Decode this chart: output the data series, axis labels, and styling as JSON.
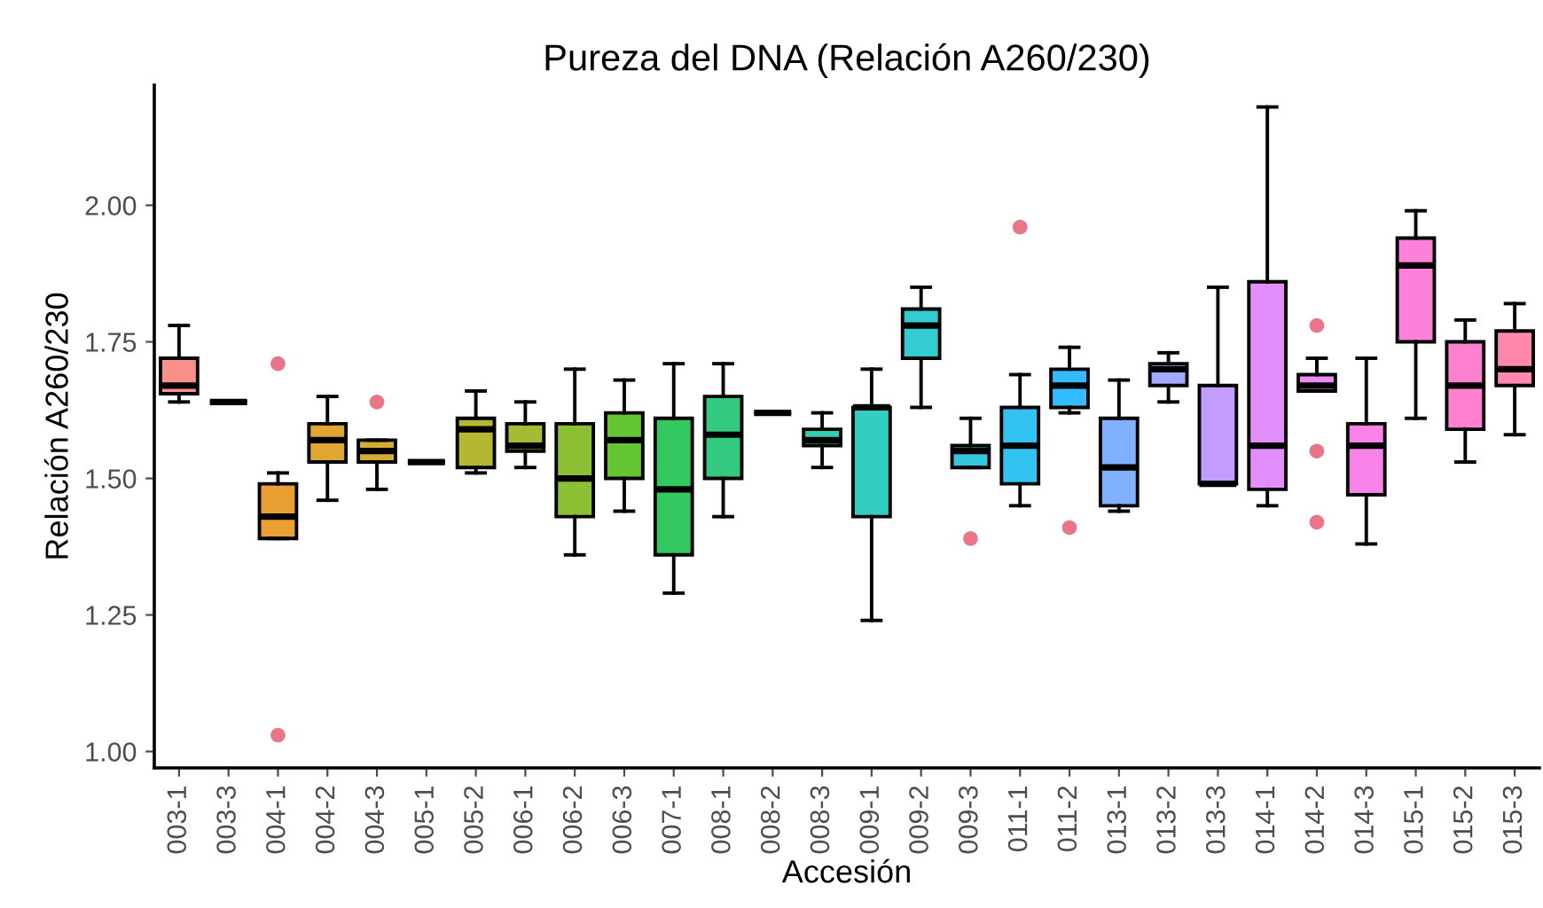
{
  "chart_data": {
    "type": "box",
    "title": "Pureza del DNA (Relación A260/230)",
    "xlabel": "Accesión",
    "ylabel": "Relación A260/230",
    "categories": [
      "003-1",
      "003-3",
      "004-1",
      "004-2",
      "004-3",
      "005-1",
      "005-2",
      "006-1",
      "006-2",
      "006-3",
      "007-1",
      "008-1",
      "008-2",
      "008-3",
      "009-1",
      "009-2",
      "009-3",
      "011-1",
      "011-2",
      "013-1",
      "013-2",
      "013-3",
      "014-1",
      "014-2",
      "014-3",
      "015-1",
      "015-2",
      "015-3"
    ],
    "colors": [
      "#F8766D",
      null,
      "#E58700",
      "#D89000",
      "#C99800",
      null,
      "#A3A500",
      "#8CAB00",
      "#6FB000",
      "#3DB600",
      "#00BA38",
      "#00BD5F",
      null,
      "#00C19A",
      "#00C1B2",
      "#00BFC4",
      "#00BAD6",
      "#00B4EF",
      "#00A9FF",
      "#619CFF",
      "#8B93FF",
      "#B385FF",
      "#DB72FB",
      "#E76BF3",
      "#F564E3",
      "#FA62D0",
      "#FF61C3",
      "#FF6A98"
    ],
    "boxes": [
      {
        "low": 1.64,
        "q1": 1.655,
        "median": 1.67,
        "q3": 1.72,
        "high": 1.78
      },
      {
        "low": 1.64,
        "q1": 1.64,
        "median": 1.64,
        "q3": 1.64,
        "high": 1.64
      },
      {
        "low": 1.39,
        "q1": 1.39,
        "median": 1.43,
        "q3": 1.49,
        "high": 1.51,
        "outliers": [
          1.71,
          1.03
        ]
      },
      {
        "low": 1.46,
        "q1": 1.53,
        "median": 1.57,
        "q3": 1.6,
        "high": 1.65
      },
      {
        "low": 1.48,
        "q1": 1.53,
        "median": 1.55,
        "q3": 1.57,
        "high": 1.57,
        "outliers": [
          1.64
        ]
      },
      {
        "low": 1.53,
        "q1": 1.53,
        "median": 1.53,
        "q3": 1.53,
        "high": 1.53
      },
      {
        "low": 1.51,
        "q1": 1.52,
        "median": 1.59,
        "q3": 1.61,
        "high": 1.66
      },
      {
        "low": 1.52,
        "q1": 1.55,
        "median": 1.56,
        "q3": 1.6,
        "high": 1.64
      },
      {
        "low": 1.36,
        "q1": 1.43,
        "median": 1.5,
        "q3": 1.6,
        "high": 1.7
      },
      {
        "low": 1.44,
        "q1": 1.5,
        "median": 1.57,
        "q3": 1.62,
        "high": 1.68
      },
      {
        "low": 1.29,
        "q1": 1.36,
        "median": 1.48,
        "q3": 1.61,
        "high": 1.71
      },
      {
        "low": 1.43,
        "q1": 1.5,
        "median": 1.58,
        "q3": 1.65,
        "high": 1.71
      },
      {
        "low": 1.62,
        "q1": 1.62,
        "median": 1.62,
        "q3": 1.62,
        "high": 1.62
      },
      {
        "low": 1.52,
        "q1": 1.56,
        "median": 1.57,
        "q3": 1.59,
        "high": 1.62
      },
      {
        "low": 1.24,
        "q1": 1.43,
        "median": 1.63,
        "q3": 1.63,
        "high": 1.7
      },
      {
        "low": 1.63,
        "q1": 1.72,
        "median": 1.78,
        "q3": 1.81,
        "high": 1.85
      },
      {
        "low": 1.52,
        "q1": 1.52,
        "median": 1.55,
        "q3": 1.56,
        "high": 1.61,
        "outliers": [
          1.39
        ]
      },
      {
        "low": 1.45,
        "q1": 1.49,
        "median": 1.56,
        "q3": 1.63,
        "high": 1.69,
        "outliers": [
          1.96
        ]
      },
      {
        "low": 1.62,
        "q1": 1.63,
        "median": 1.67,
        "q3": 1.7,
        "high": 1.74,
        "outliers": [
          1.41
        ]
      },
      {
        "low": 1.44,
        "q1": 1.45,
        "median": 1.52,
        "q3": 1.61,
        "high": 1.68
      },
      {
        "low": 1.64,
        "q1": 1.67,
        "median": 1.7,
        "q3": 1.71,
        "high": 1.73
      },
      {
        "low": 1.49,
        "q1": 1.49,
        "median": 1.49,
        "q3": 1.67,
        "high": 1.85
      },
      {
        "low": 1.45,
        "q1": 1.48,
        "median": 1.56,
        "q3": 1.86,
        "high": 2.18
      },
      {
        "low": 1.66,
        "q1": 1.66,
        "median": 1.67,
        "q3": 1.69,
        "high": 1.72,
        "outliers": [
          1.78,
          1.55,
          1.42
        ]
      },
      {
        "low": 1.38,
        "q1": 1.47,
        "median": 1.56,
        "q3": 1.6,
        "high": 1.72
      },
      {
        "low": 1.61,
        "q1": 1.75,
        "median": 1.89,
        "q3": 1.94,
        "high": 1.99
      },
      {
        "low": 1.53,
        "q1": 1.59,
        "median": 1.67,
        "q3": 1.75,
        "high": 1.79
      },
      {
        "low": 1.58,
        "q1": 1.67,
        "median": 1.7,
        "q3": 1.77,
        "high": 1.82
      }
    ],
    "ylim": [
      0.97,
      2.22
    ],
    "yticks": [
      {
        "value": 1.0,
        "label": "1.00"
      },
      {
        "value": 1.25,
        "label": "1.25"
      },
      {
        "value": 1.5,
        "label": "1.50"
      },
      {
        "value": 1.75,
        "label": "1.75"
      },
      {
        "value": 2.0,
        "label": "2.00"
      }
    ],
    "grid": false,
    "legend": false
  }
}
